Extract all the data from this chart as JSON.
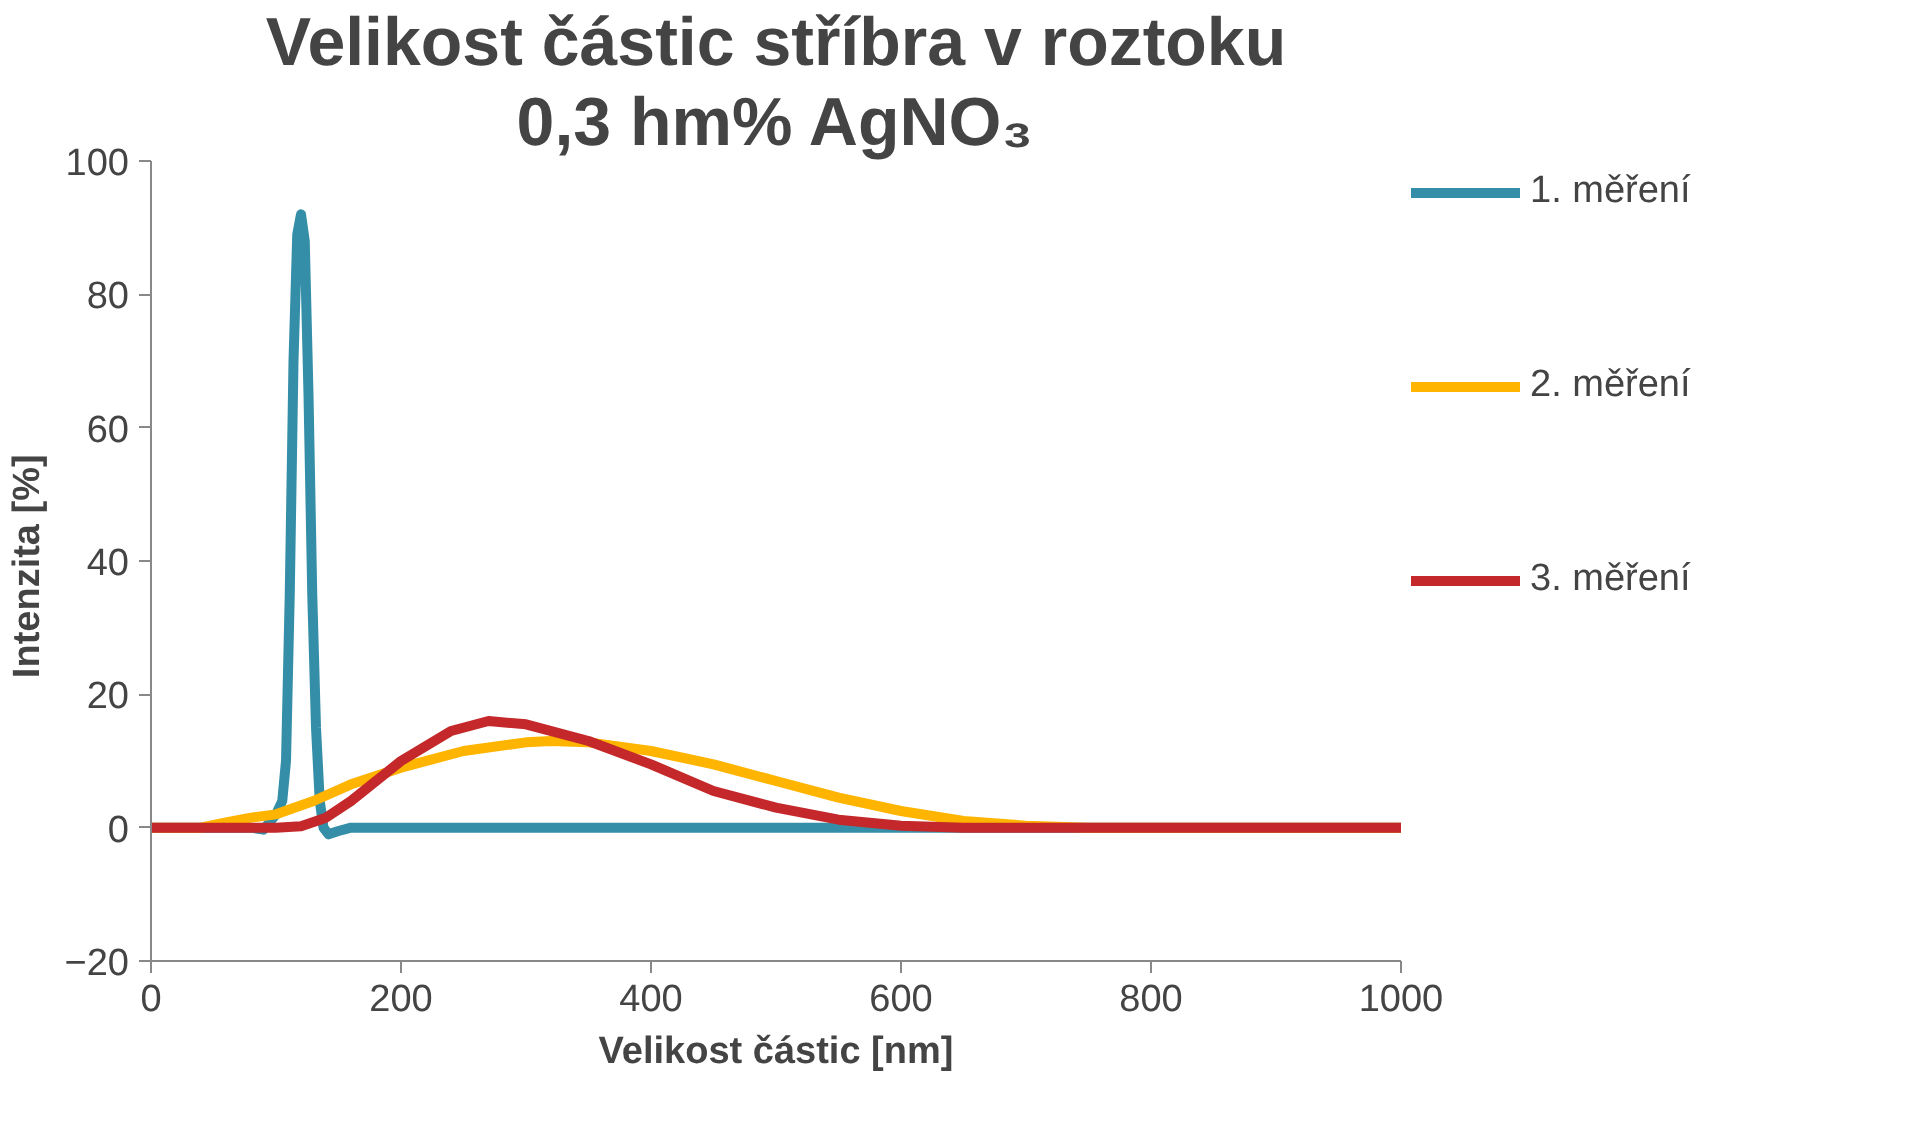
{
  "chart_data": {
    "type": "line",
    "title": "Velikost částic stříbra v roztoku",
    "subtitle": "0,3 hm% AgNO₃",
    "xlabel": "Velikost částic [nm]",
    "ylabel": "Intenzita  [%]",
    "xlim": [
      0,
      1000
    ],
    "xticks": [
      0,
      200,
      400,
      600,
      800,
      1000
    ],
    "ylim": [
      -20,
      100
    ],
    "yticks": [
      -20,
      0,
      20,
      40,
      60,
      80,
      100
    ],
    "grid": false,
    "legend": "right",
    "marker": "none",
    "line_style": "solid",
    "series": [
      {
        "name": "1. měření",
        "color": "#358ea8",
        "x": [
          0,
          50,
          80,
          90,
          100,
          105,
          108,
          111,
          114,
          117,
          120,
          123,
          126,
          129,
          132,
          135,
          138,
          142,
          150,
          160,
          200,
          400,
          600,
          800,
          1000
        ],
        "values": [
          0,
          0,
          0,
          -0.3,
          2,
          4,
          10,
          35,
          70,
          89,
          92,
          88,
          65,
          35,
          15,
          4,
          0,
          -1,
          -0.5,
          0,
          0,
          0,
          0,
          0,
          0
        ]
      },
      {
        "name": "2. měření",
        "color": "#ffb400",
        "x": [
          0,
          40,
          60,
          80,
          100,
          130,
          160,
          200,
          250,
          300,
          320,
          350,
          400,
          450,
          500,
          550,
          600,
          650,
          700,
          750,
          800,
          1000
        ],
        "values": [
          0,
          0,
          0.8,
          1.5,
          2,
          4,
          6.5,
          9,
          11.5,
          12.8,
          13,
          12.8,
          11.5,
          9.5,
          7,
          4.5,
          2.5,
          1,
          0.3,
          0,
          0,
          0
        ]
      },
      {
        "name": "3. měření",
        "color": "#c4282a",
        "x": [
          0,
          100,
          120,
          140,
          160,
          200,
          240,
          270,
          300,
          350,
          400,
          450,
          500,
          550,
          600,
          650,
          800,
          1000
        ],
        "values": [
          0,
          0,
          0.2,
          1.5,
          4,
          10,
          14.5,
          16,
          15.5,
          13,
          9.5,
          5.5,
          3,
          1.2,
          0.3,
          0,
          0,
          0
        ]
      }
    ]
  }
}
